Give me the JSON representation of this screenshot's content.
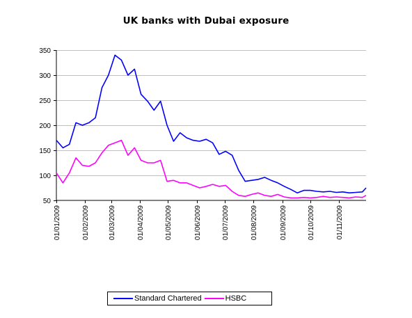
{
  "chart_data": {
    "type": "line",
    "title": "UK banks with Dubai exposure",
    "xlabel": "",
    "ylabel": "",
    "ylim": [
      50,
      350
    ],
    "y_ticks": [
      50,
      100,
      150,
      200,
      250,
      300,
      350
    ],
    "x_ticks": [
      "01/01/2009",
      "01/02/2009",
      "01/03/2009",
      "01/04/2009",
      "01/05/2009",
      "01/06/2009",
      "01/07/2009",
      "01/08/2009",
      "01/09/2009",
      "01/10/2009",
      "01/11/2009"
    ],
    "grid": "horizontal",
    "legend_position": "bottom",
    "x": [
      "2009-01-01",
      "2009-01-08",
      "2009-01-15",
      "2009-01-22",
      "2009-01-29",
      "2009-02-05",
      "2009-02-12",
      "2009-02-19",
      "2009-02-26",
      "2009-03-05",
      "2009-03-12",
      "2009-03-19",
      "2009-03-26",
      "2009-04-02",
      "2009-04-09",
      "2009-04-16",
      "2009-04-23",
      "2009-04-30",
      "2009-05-07",
      "2009-05-14",
      "2009-05-21",
      "2009-05-28",
      "2009-06-04",
      "2009-06-11",
      "2009-06-18",
      "2009-06-25",
      "2009-07-02",
      "2009-07-09",
      "2009-07-16",
      "2009-07-23",
      "2009-07-30",
      "2009-08-06",
      "2009-08-13",
      "2009-08-20",
      "2009-08-27",
      "2009-09-03",
      "2009-09-10",
      "2009-09-17",
      "2009-09-24",
      "2009-10-01",
      "2009-10-08",
      "2009-10-15",
      "2009-10-22",
      "2009-10-29",
      "2009-11-05",
      "2009-11-12",
      "2009-11-19",
      "2009-11-26",
      "2009-11-30"
    ],
    "series": [
      {
        "name": "Standard Chartered",
        "color": "#0000ff",
        "values": [
          170,
          155,
          162,
          205,
          200,
          205,
          215,
          275,
          300,
          340,
          330,
          300,
          312,
          262,
          248,
          230,
          248,
          200,
          168,
          185,
          175,
          170,
          168,
          172,
          165,
          142,
          148,
          140,
          110,
          88,
          90,
          92,
          96,
          90,
          85,
          78,
          72,
          65,
          70,
          70,
          68,
          67,
          68,
          66,
          67,
          65,
          66,
          67,
          75
        ]
      },
      {
        "name": "HSBC",
        "color": "#ff00ff",
        "values": [
          105,
          85,
          105,
          135,
          120,
          118,
          125,
          145,
          160,
          165,
          170,
          140,
          155,
          130,
          125,
          125,
          130,
          88,
          90,
          85,
          85,
          80,
          75,
          78,
          82,
          78,
          80,
          68,
          60,
          58,
          62,
          65,
          60,
          58,
          62,
          57,
          55,
          55,
          56,
          55,
          56,
          58,
          56,
          57,
          56,
          55,
          57,
          56,
          60
        ]
      }
    ]
  }
}
